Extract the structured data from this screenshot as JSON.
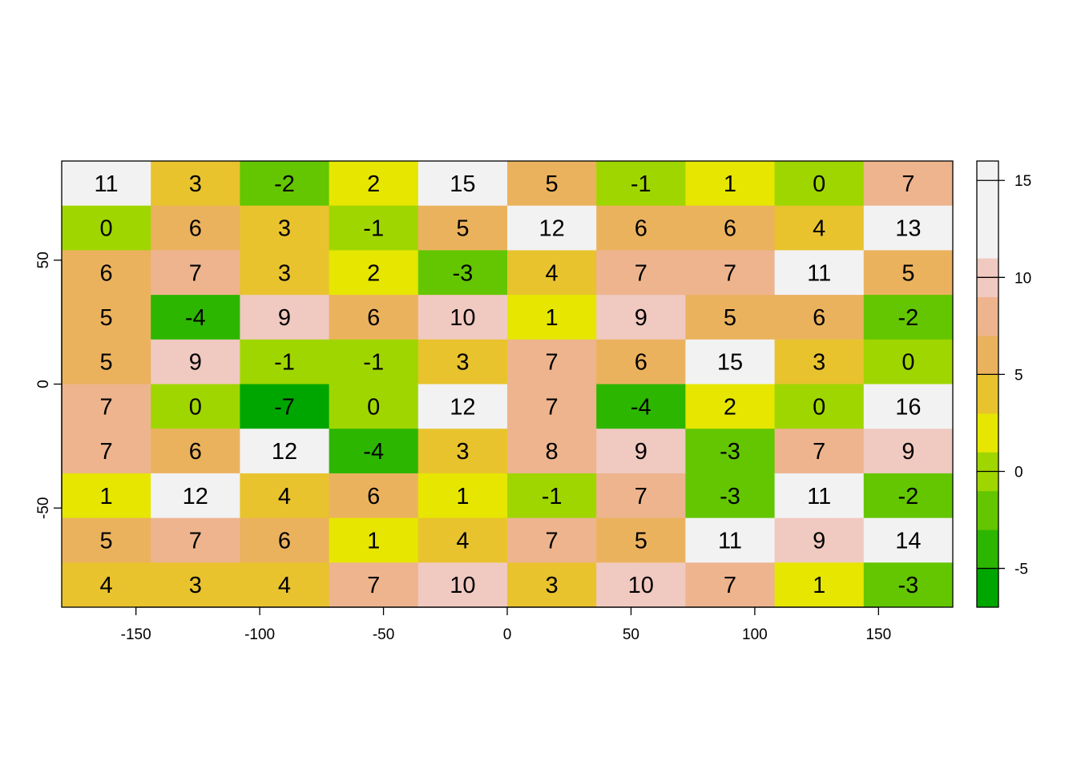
{
  "chart_data": {
    "type": "heatmap",
    "title": "",
    "xlabel": "",
    "ylabel": "",
    "xlim": [
      -180,
      180
    ],
    "ylim": [
      -90,
      90
    ],
    "x_ticks": [
      -150,
      -100,
      -50,
      0,
      50,
      100,
      150
    ],
    "y_ticks": [
      -50,
      0,
      50
    ],
    "rows": [
      [
        11,
        3,
        -2,
        2,
        15,
        5,
        -1,
        1,
        0,
        7
      ],
      [
        0,
        6,
        3,
        -1,
        5,
        12,
        6,
        6,
        4,
        13
      ],
      [
        6,
        7,
        3,
        2,
        -3,
        4,
        7,
        7,
        11,
        5
      ],
      [
        5,
        -4,
        9,
        6,
        10,
        1,
        9,
        5,
        6,
        -2
      ],
      [
        5,
        9,
        -1,
        -1,
        3,
        7,
        6,
        15,
        3,
        0
      ],
      [
        7,
        0,
        -7,
        0,
        12,
        7,
        -4,
        2,
        0,
        16
      ],
      [
        7,
        6,
        12,
        -4,
        3,
        8,
        9,
        -3,
        7,
        9
      ],
      [
        1,
        12,
        4,
        6,
        1,
        -1,
        7,
        -3,
        11,
        -2
      ],
      [
        5,
        7,
        6,
        1,
        4,
        7,
        5,
        11,
        9,
        14
      ],
      [
        4,
        3,
        4,
        7,
        10,
        3,
        10,
        7,
        1,
        -3
      ]
    ],
    "color_breaks": [
      -7,
      -5,
      -3,
      -1,
      1,
      3,
      5,
      7,
      9,
      11,
      13,
      15,
      17
    ],
    "colors": [
      "#00A600",
      "#2DB600",
      "#63C600",
      "#A0D600",
      "#E6E600",
      "#E8C32E",
      "#EBB25E",
      "#EDB48E",
      "#F0C9C0",
      "#F2F2F2",
      "#F2F2F2",
      "#F2F2F2"
    ],
    "legend": {
      "placement": "right",
      "ticks": [
        -5,
        0,
        5,
        10,
        15
      ],
      "range": [
        -7,
        16
      ]
    }
  }
}
